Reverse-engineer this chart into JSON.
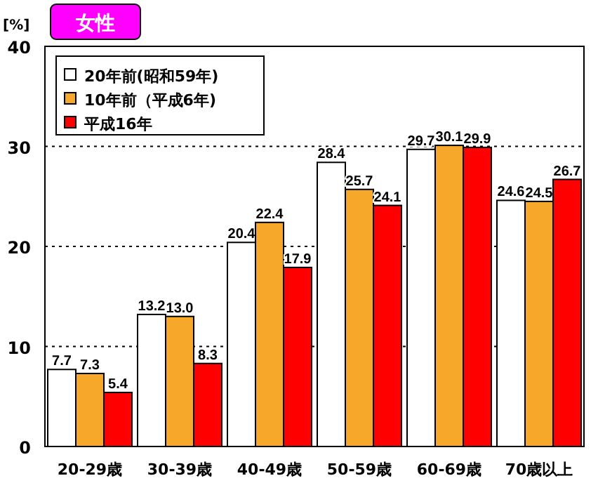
{
  "chart_data": {
    "type": "bar",
    "title": "女性",
    "ylabel": "[%]",
    "categories": [
      "20-29歳",
      "30-39歳",
      "40-49歳",
      "50-59歳",
      "60-69歳",
      "70歳以上"
    ],
    "series": [
      {
        "name": "20年前(昭和59年)",
        "color": "#ffffff",
        "values": [
          7.7,
          13.2,
          20.4,
          28.4,
          29.7,
          24.6
        ],
        "value_labels": [
          "7.7",
          "13.2",
          "20.4",
          "28.4",
          "29.7",
          "24.6"
        ]
      },
      {
        "name": "10年前（平成6年)",
        "color": "#f5a82a",
        "values": [
          7.3,
          13.0,
          22.4,
          25.7,
          30.1,
          24.5
        ],
        "value_labels": [
          "7.3",
          "13.0",
          "22.4",
          "25.7",
          "30.1",
          "24.5"
        ]
      },
      {
        "name": "平成16年",
        "color": "#ff0000",
        "values": [
          5.4,
          8.3,
          17.9,
          24.1,
          29.9,
          26.7
        ],
        "value_labels": [
          "5.4",
          "8.3",
          "17.9",
          "24.1",
          "29.9",
          "26.7"
        ]
      }
    ],
    "ylim": [
      0,
      40
    ],
    "yticks": [
      0,
      10,
      20,
      30,
      40
    ],
    "grid": "y",
    "legend": "top left"
  }
}
